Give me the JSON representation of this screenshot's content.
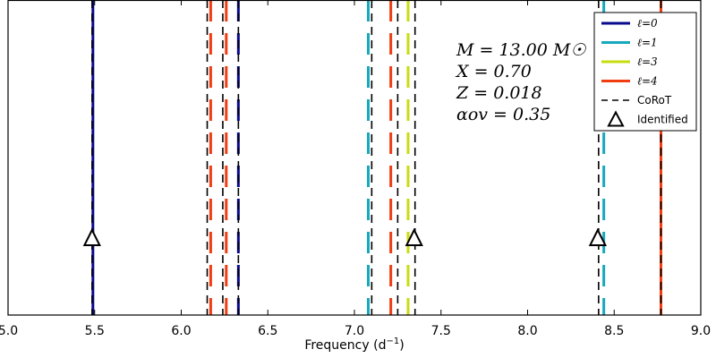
{
  "chart_data": {
    "type": "line",
    "title": "",
    "xlabel": "Frequency (d",
    "xlabel_sup": "−1",
    "xlabel_end": ")",
    "ylabel": "",
    "xlim": [
      5.0,
      9.0
    ],
    "xticks": [
      "5.0",
      "5.5",
      "6.0",
      "6.5",
      "7.0",
      "7.5",
      "8.0",
      "8.5",
      "9.0"
    ],
    "grid": false,
    "legend_position": "top-right",
    "series": [
      {
        "name": "ℓ=0",
        "color": "#0a0a8c",
        "style": "solid",
        "x": [
          5.49
        ]
      },
      {
        "name": "ℓ=0",
        "color": "#0a0a8c",
        "style": "long-dash",
        "x": [
          6.33
        ]
      },
      {
        "name": "ℓ=1",
        "color": "#17a8bd",
        "style": "long-dash",
        "x": [
          7.08,
          8.44
        ]
      },
      {
        "name": "ℓ=3",
        "color": "#c8dc10",
        "style": "long-dash",
        "x": [
          7.31
        ]
      },
      {
        "name": "ℓ=4",
        "color": "#f03c10",
        "style": "long-dash",
        "x": [
          6.17,
          6.26,
          7.21
        ]
      },
      {
        "name": "ℓ=4",
        "color": "#f03c10",
        "style": "solid",
        "x": [
          8.77
        ]
      },
      {
        "name": "CoRoT",
        "color": "#000000",
        "style": "short-dash",
        "x": [
          5.485,
          6.15,
          6.24,
          6.33,
          7.1,
          7.25,
          7.35,
          8.41,
          8.77
        ]
      },
      {
        "name": "Identified",
        "color": "#000000",
        "style": "triangle-marker",
        "x": [
          5.485,
          7.345,
          8.405
        ]
      }
    ],
    "legend": [
      {
        "label": "ℓ=0",
        "kind": "line",
        "color": "#0a0a8c",
        "math": true
      },
      {
        "label": "ℓ=1",
        "kind": "line",
        "color": "#17a8bd",
        "math": true
      },
      {
        "label": "ℓ=3",
        "kind": "line",
        "color": "#c8dc10",
        "math": true
      },
      {
        "label": "ℓ=4",
        "kind": "line",
        "color": "#f03c10",
        "math": true
      },
      {
        "label": "CoRoT",
        "kind": "dash",
        "color": "#000000",
        "math": false
      },
      {
        "label": "Identified",
        "kind": "triangle",
        "color": "#000000",
        "math": false
      }
    ],
    "annotations": [
      "M = 13.00 M☉",
      "X = 0.70",
      "Z = 0.018",
      "αov = 0.35"
    ]
  }
}
